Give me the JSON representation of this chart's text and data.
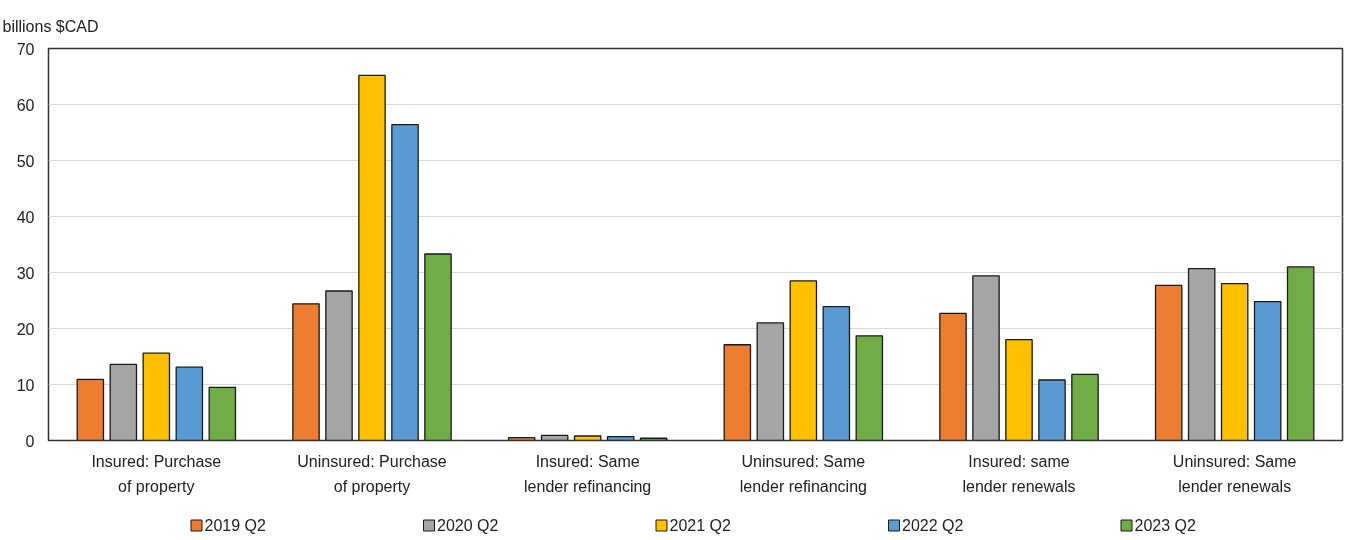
{
  "chart_data": {
    "type": "bar",
    "ylabel": "billions $CAD",
    "categories": [
      "Insured: Purchase\nof property",
      "Uninsured: Purchase\nof property",
      "Insured: Same\nlender refinancing",
      "Uninsured: Same\nlender refinancing",
      "Insured: same\nlender renewals",
      "Uninsured: Same\nlender renewals"
    ],
    "series": [
      {
        "name": "2019 Q2",
        "color": "#ed7d31",
        "values": [
          10.9,
          24.4,
          0.5,
          17.1,
          22.7,
          27.7
        ]
      },
      {
        "name": "2020 Q2",
        "color": "#a5a5a5",
        "values": [
          13.6,
          26.7,
          0.9,
          21.0,
          29.4,
          30.7
        ]
      },
      {
        "name": "2021 Q2",
        "color": "#ffc000",
        "values": [
          15.6,
          65.2,
          0.8,
          28.5,
          18.0,
          28.0
        ]
      },
      {
        "name": "2022 Q2",
        "color": "#5b9bd5",
        "values": [
          13.1,
          56.4,
          0.7,
          23.9,
          10.8,
          24.8
        ]
      },
      {
        "name": "2023 Q2",
        "color": "#70ad47",
        "values": [
          9.5,
          33.3,
          0.4,
          18.7,
          11.8,
          31.0
        ]
      }
    ],
    "ylim": [
      0,
      70
    ],
    "yticks": [
      0,
      10,
      20,
      30,
      40,
      50,
      60,
      70
    ],
    "grid": "y",
    "legend": "bottom"
  }
}
